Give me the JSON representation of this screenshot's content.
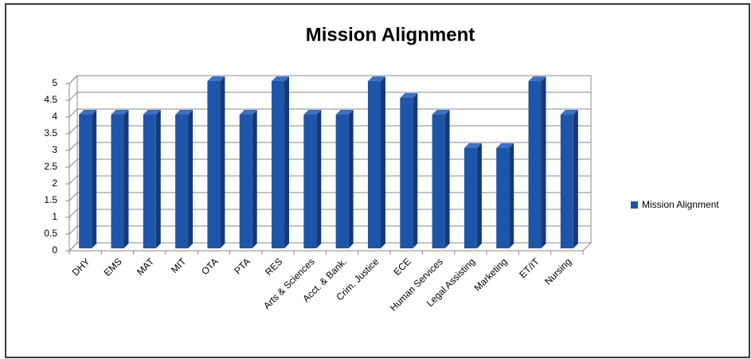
{
  "chart_data": {
    "type": "bar",
    "title": "Mission Alignment",
    "categories": [
      "DHY",
      "EMS",
      "MAT",
      "MIT",
      "OTA",
      "PTA",
      "RES",
      "Arts & Sciences",
      "Acct. & Bank.",
      "Crim. Justice",
      "ECE",
      "Human Services",
      "Legal Assisting",
      "Marketing",
      "ET/IT",
      "Nursing"
    ],
    "series": [
      {
        "name": "Mission Alignment",
        "color": "#1f55a8",
        "values": [
          4,
          4,
          4,
          4,
          5,
          4,
          5,
          4,
          4,
          5,
          4.5,
          4,
          3,
          3,
          5,
          4
        ]
      }
    ],
    "ylim": [
      0,
      5
    ],
    "yticks": [
      0,
      0.5,
      1,
      1.5,
      2,
      2.5,
      3,
      3.5,
      4,
      4.5,
      5
    ],
    "grid": true,
    "legend": "right"
  }
}
